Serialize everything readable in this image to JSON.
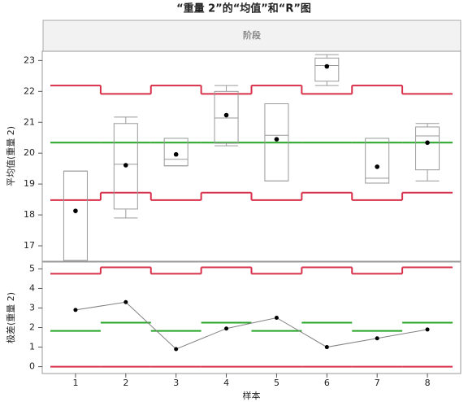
{
  "title": "“重量 2”的“均值”和“R”图",
  "phase_label": "阶段",
  "chart_data": [
    {
      "type": "box",
      "y_label": "平均值(重量 2)",
      "ylim": [
        16.5,
        23.3
      ],
      "yticks": [
        17,
        18,
        19,
        20,
        21,
        22,
        23
      ],
      "box_color": "#9a9a9a",
      "point_color": "#000000",
      "boxes": [
        {
          "low": 16.52,
          "q1": 16.52,
          "median": 16.52,
          "q3": 19.42,
          "high": 19.42
        },
        {
          "low": 17.9,
          "q1": 18.19,
          "median": 19.64,
          "q3": 20.96,
          "high": 21.17
        },
        {
          "low": 19.59,
          "q1": 19.59,
          "median": 19.8,
          "q3": 20.48,
          "high": 20.48
        },
        {
          "low": 20.24,
          "q1": 20.32,
          "median": 21.14,
          "q3": 22.0,
          "high": 22.19
        },
        {
          "low": 19.1,
          "q1": 19.1,
          "median": 20.58,
          "q3": 21.6,
          "high": 21.6
        },
        {
          "low": 22.19,
          "q1": 22.33,
          "median": 22.84,
          "q3": 23.08,
          "high": 23.19
        },
        {
          "low": 19.03,
          "q1": 19.03,
          "median": 19.19,
          "q3": 20.48,
          "high": 20.48
        },
        {
          "low": 19.1,
          "q1": 19.46,
          "median": 20.56,
          "q3": 20.85,
          "high": 20.96
        }
      ],
      "values": [
        18.13,
        19.61,
        19.96,
        21.23,
        20.45,
        22.81,
        19.56,
        20.34
      ],
      "limits": [
        {
          "color": "#d8304a",
          "joined": true,
          "values": [
            22.19,
            21.92,
            22.19,
            21.92,
            22.19,
            21.92,
            22.19,
            21.92
          ]
        },
        {
          "color": "#27a527",
          "joined": true,
          "values": [
            20.34,
            20.34,
            20.34,
            20.34,
            20.34,
            20.34,
            20.34,
            20.34
          ]
        },
        {
          "color": "#d8304a",
          "joined": true,
          "values": [
            18.48,
            18.72,
            18.48,
            18.72,
            18.48,
            18.72,
            18.48,
            18.72
          ]
        }
      ]
    },
    {
      "type": "line",
      "y_label": "极差(重量 2)",
      "x_label": "样本",
      "categories": [
        "1",
        "2",
        "3",
        "4",
        "5",
        "6",
        "7",
        "8"
      ],
      "ylim": [
        -0.35,
        5.35
      ],
      "yticks": [
        0,
        1,
        2,
        3,
        4,
        5
      ],
      "line_color": "#808080",
      "point_color": "#000000",
      "values": [
        2.9,
        3.3,
        0.9,
        1.95,
        2.5,
        1.0,
        1.45,
        1.9
      ],
      "limits": [
        {
          "color": "#d8304a",
          "joined": true,
          "values": [
            4.75,
            5.08,
            4.75,
            5.08,
            4.75,
            5.08,
            4.75,
            5.08
          ]
        },
        {
          "color": "#27a527",
          "joined": false,
          "values": [
            1.83,
            2.25,
            1.83,
            2.25,
            1.83,
            2.25,
            1.83,
            2.25
          ]
        },
        {
          "color": "#d8304a",
          "joined": true,
          "values": [
            0,
            0,
            0,
            0,
            0,
            0,
            0,
            0
          ]
        }
      ]
    }
  ]
}
